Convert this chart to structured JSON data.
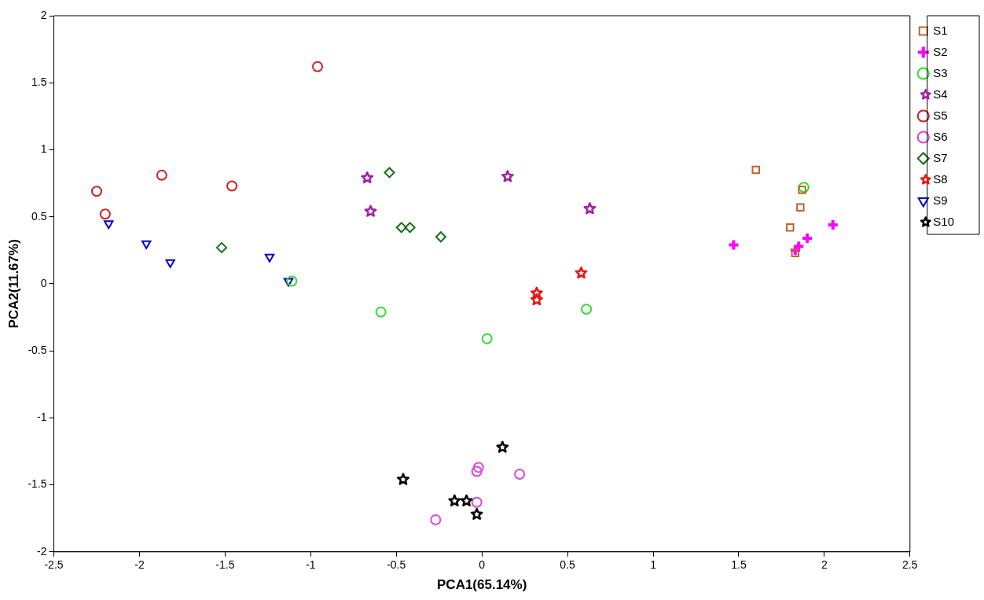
{
  "chart_data": {
    "type": "scatter",
    "xlabel": "PCA1(65.14%)",
    "ylabel": "PCA2(11.67%)",
    "xlim": [
      -2.5,
      2.5
    ],
    "xticks": [
      -2.5,
      -2,
      -1.5,
      -1,
      -0.5,
      0,
      0.5,
      1,
      1.5,
      2,
      2.5
    ],
    "ylim": [
      -2,
      2
    ],
    "yticks": [
      -2,
      -1.5,
      -1,
      -0.5,
      0,
      0.5,
      1,
      1.5,
      2
    ],
    "grid": false,
    "legend": "top right",
    "series": [
      {
        "name": "S1",
        "color": "#c0622e",
        "marker": "square",
        "x": [
          1.6,
          1.87,
          1.86,
          1.8,
          1.83
        ],
        "values": [
          0.85,
          0.7,
          0.57,
          0.42,
          0.23
        ]
      },
      {
        "name": "S2",
        "color": "#ff00ff",
        "marker": "cross",
        "x": [
          1.47,
          1.83,
          1.85,
          1.9,
          2.05
        ],
        "values": [
          0.29,
          0.25,
          0.28,
          0.34,
          0.44
        ]
      },
      {
        "name": "S3",
        "color": "#33dd33",
        "marker": "circle",
        "x": [
          -0.59,
          0.03,
          0.61,
          1.88,
          -1.11
        ],
        "values": [
          -0.21,
          -0.41,
          -0.19,
          0.72,
          0.02
        ]
      },
      {
        "name": "S4",
        "color": "#a020a0",
        "marker": "star",
        "x": [
          -0.67,
          -0.65,
          0.15,
          0.63
        ],
        "values": [
          0.79,
          0.54,
          0.8,
          0.56
        ]
      },
      {
        "name": "S5",
        "color": "#cc2222",
        "marker": "circle",
        "x": [
          -2.25,
          -2.2,
          -1.87,
          -1.46,
          -0.96
        ],
        "values": [
          0.69,
          0.52,
          0.81,
          0.73,
          1.62
        ]
      },
      {
        "name": "S6",
        "color": "#dd44dd",
        "marker": "circle",
        "x": [
          -0.27,
          -0.03,
          -0.03,
          -0.02,
          0.22
        ],
        "values": [
          -1.76,
          -1.63,
          -1.4,
          -1.37,
          -1.42
        ]
      },
      {
        "name": "S7",
        "color": "#1a6e1a",
        "marker": "diamond",
        "x": [
          -1.52,
          -0.54,
          -0.47,
          -0.42,
          -0.24
        ],
        "values": [
          0.27,
          0.83,
          0.42,
          0.42,
          0.35
        ]
      },
      {
        "name": "S8",
        "color": "#ee1111",
        "marker": "star",
        "x": [
          0.32,
          0.32,
          0.58
        ],
        "values": [
          -0.07,
          -0.12,
          0.08
        ]
      },
      {
        "name": "S9",
        "color": "#0000cc",
        "marker": "triangle",
        "x": [
          -2.18,
          -1.96,
          -1.82,
          -1.24,
          -1.13
        ],
        "values": [
          0.45,
          0.3,
          0.16,
          0.2,
          0.02
        ]
      },
      {
        "name": "S10",
        "color": "#000000",
        "marker": "star",
        "x": [
          -0.46,
          0.12,
          -0.16,
          -0.09,
          -0.03
        ],
        "values": [
          -1.46,
          -1.22,
          -1.62,
          -1.62,
          -1.72
        ]
      }
    ]
  }
}
